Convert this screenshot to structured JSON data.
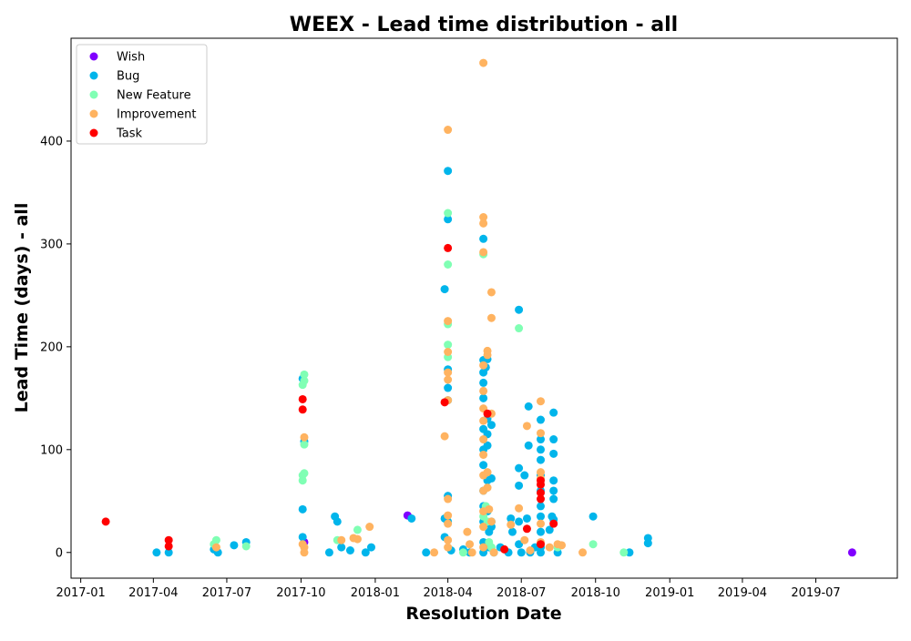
{
  "chart_data": {
    "type": "scatter",
    "title": "WEEX - Lead time distribution - all",
    "xlabel": "Resolution Date",
    "ylabel": "Lead Time (days) - all",
    "x_ticks": [
      "2017-01",
      "2017-04",
      "2017-07",
      "2017-10",
      "2018-01",
      "2018-04",
      "2018-07",
      "2018-10",
      "2019-01",
      "2019-04",
      "2019-07"
    ],
    "x_range": [
      "2016-12-20",
      "2019-10-10"
    ],
    "y_ticks": [
      0,
      100,
      200,
      300,
      400
    ],
    "ylim": [
      -25,
      500
    ],
    "legend_position": "upper-left",
    "grid": false,
    "series": [
      {
        "name": "Wish",
        "color": "#8000ff",
        "points": [
          [
            "2017-10-05",
            10
          ],
          [
            "2018-02-10",
            36
          ],
          [
            "2019-08-15",
            0
          ]
        ]
      },
      {
        "name": "Bug",
        "color": "#00b5eb",
        "points": [
          [
            "2017-04-05",
            0
          ],
          [
            "2017-04-20",
            0
          ],
          [
            "2017-06-15",
            3
          ],
          [
            "2017-06-20",
            0
          ],
          [
            "2017-07-10",
            7
          ],
          [
            "2017-07-25",
            10
          ],
          [
            "2017-10-03",
            169
          ],
          [
            "2017-10-03",
            42
          ],
          [
            "2017-10-03",
            15
          ],
          [
            "2017-10-05",
            108
          ],
          [
            "2017-11-05",
            0
          ],
          [
            "2017-11-12",
            35
          ],
          [
            "2017-11-15",
            30
          ],
          [
            "2017-11-20",
            5
          ],
          [
            "2017-12-01",
            2
          ],
          [
            "2017-12-20",
            0
          ],
          [
            "2017-12-27",
            5
          ],
          [
            "2018-02-15",
            33
          ],
          [
            "2018-03-05",
            0
          ],
          [
            "2018-03-28",
            256
          ],
          [
            "2018-03-28",
            33
          ],
          [
            "2018-03-28",
            15
          ],
          [
            "2018-04-01",
            371
          ],
          [
            "2018-04-01",
            324
          ],
          [
            "2018-04-01",
            178
          ],
          [
            "2018-04-01",
            160
          ],
          [
            "2018-04-01",
            148
          ],
          [
            "2018-04-01",
            55
          ],
          [
            "2018-04-01",
            30
          ],
          [
            "2018-04-05",
            2
          ],
          [
            "2018-04-20",
            3
          ],
          [
            "2018-04-28",
            0
          ],
          [
            "2018-05-15",
            305
          ],
          [
            "2018-05-15",
            187
          ],
          [
            "2018-05-15",
            175
          ],
          [
            "2018-05-15",
            165
          ],
          [
            "2018-05-15",
            150
          ],
          [
            "2018-05-15",
            120
          ],
          [
            "2018-05-15",
            100
          ],
          [
            "2018-05-15",
            85
          ],
          [
            "2018-05-15",
            60
          ],
          [
            "2018-05-15",
            45
          ],
          [
            "2018-05-15",
            30
          ],
          [
            "2018-05-15",
            10
          ],
          [
            "2018-05-15",
            0
          ],
          [
            "2018-05-18",
            180
          ],
          [
            "2018-05-20",
            188
          ],
          [
            "2018-05-20",
            130
          ],
          [
            "2018-05-20",
            115
          ],
          [
            "2018-05-20",
            104
          ],
          [
            "2018-05-20",
            70
          ],
          [
            "2018-05-20",
            40
          ],
          [
            "2018-05-22",
            20
          ],
          [
            "2018-05-22",
            5
          ],
          [
            "2018-05-25",
            124
          ],
          [
            "2018-05-25",
            72
          ],
          [
            "2018-05-25",
            30
          ],
          [
            "2018-05-25",
            25
          ],
          [
            "2018-05-28",
            0
          ],
          [
            "2018-06-05",
            5
          ],
          [
            "2018-06-15",
            0
          ],
          [
            "2018-06-18",
            33
          ],
          [
            "2018-06-20",
            20
          ],
          [
            "2018-06-28",
            236
          ],
          [
            "2018-06-28",
            82
          ],
          [
            "2018-06-28",
            65
          ],
          [
            "2018-06-28",
            30
          ],
          [
            "2018-06-28",
            8
          ],
          [
            "2018-07-01",
            0
          ],
          [
            "2018-07-05",
            75
          ],
          [
            "2018-07-08",
            33
          ],
          [
            "2018-07-10",
            142
          ],
          [
            "2018-07-10",
            104
          ],
          [
            "2018-07-12",
            0
          ],
          [
            "2018-07-18",
            5
          ],
          [
            "2018-07-25",
            129
          ],
          [
            "2018-07-25",
            110
          ],
          [
            "2018-07-25",
            100
          ],
          [
            "2018-07-25",
            90
          ],
          [
            "2018-07-25",
            75
          ],
          [
            "2018-07-25",
            60
          ],
          [
            "2018-07-25",
            45
          ],
          [
            "2018-07-25",
            35
          ],
          [
            "2018-07-25",
            20
          ],
          [
            "2018-07-25",
            5
          ],
          [
            "2018-07-25",
            0
          ],
          [
            "2018-08-05",
            22
          ],
          [
            "2018-08-08",
            35
          ],
          [
            "2018-08-10",
            136
          ],
          [
            "2018-08-10",
            110
          ],
          [
            "2018-08-10",
            96
          ],
          [
            "2018-08-10",
            70
          ],
          [
            "2018-08-10",
            60
          ],
          [
            "2018-08-10",
            52
          ],
          [
            "2018-08-10",
            32
          ],
          [
            "2018-08-15",
            0
          ],
          [
            "2018-09-28",
            35
          ],
          [
            "2018-11-12",
            0
          ],
          [
            "2018-12-05",
            14
          ],
          [
            "2018-12-05",
            9
          ]
        ]
      },
      {
        "name": "New Feature",
        "color": "#80ffb4",
        "points": [
          [
            "2017-06-15",
            8
          ],
          [
            "2017-06-18",
            12
          ],
          [
            "2017-07-25",
            6
          ],
          [
            "2017-10-03",
            163
          ],
          [
            "2017-10-03",
            75
          ],
          [
            "2017-10-03",
            70
          ],
          [
            "2017-10-05",
            173
          ],
          [
            "2017-10-05",
            167
          ],
          [
            "2017-10-05",
            105
          ],
          [
            "2017-10-05",
            77
          ],
          [
            "2017-11-15",
            12
          ],
          [
            "2017-12-10",
            22
          ],
          [
            "2018-04-01",
            330
          ],
          [
            "2018-04-01",
            280
          ],
          [
            "2018-04-01",
            222
          ],
          [
            "2018-04-01",
            202
          ],
          [
            "2018-04-01",
            190
          ],
          [
            "2018-04-20",
            0
          ],
          [
            "2018-05-15",
            290
          ],
          [
            "2018-05-15",
            35
          ],
          [
            "2018-05-18",
            45
          ],
          [
            "2018-05-20",
            30
          ],
          [
            "2018-05-22",
            10
          ],
          [
            "2018-05-25",
            5
          ],
          [
            "2018-06-28",
            218
          ],
          [
            "2018-08-15",
            5
          ],
          [
            "2018-09-28",
            8
          ],
          [
            "2018-11-05",
            0
          ]
        ]
      },
      {
        "name": "Improvement",
        "color": "#ffb360",
        "points": [
          [
            "2017-06-18",
            5
          ],
          [
            "2017-10-03",
            8
          ],
          [
            "2017-10-05",
            112
          ],
          [
            "2017-10-05",
            5
          ],
          [
            "2017-10-05",
            0
          ],
          [
            "2017-11-20",
            12
          ],
          [
            "2017-12-05",
            14
          ],
          [
            "2017-12-10",
            13
          ],
          [
            "2017-12-25",
            25
          ],
          [
            "2018-03-15",
            0
          ],
          [
            "2018-03-28",
            113
          ],
          [
            "2018-04-01",
            411
          ],
          [
            "2018-04-01",
            225
          ],
          [
            "2018-04-01",
            195
          ],
          [
            "2018-04-01",
            175
          ],
          [
            "2018-04-01",
            168
          ],
          [
            "2018-04-01",
            148
          ],
          [
            "2018-04-01",
            52
          ],
          [
            "2018-04-01",
            36
          ],
          [
            "2018-04-01",
            28
          ],
          [
            "2018-04-01",
            12
          ],
          [
            "2018-04-01",
            5
          ],
          [
            "2018-04-25",
            20
          ],
          [
            "2018-04-28",
            8
          ],
          [
            "2018-05-01",
            0
          ],
          [
            "2018-05-15",
            476
          ],
          [
            "2018-05-15",
            326
          ],
          [
            "2018-05-15",
            320
          ],
          [
            "2018-05-15",
            292
          ],
          [
            "2018-05-15",
            182
          ],
          [
            "2018-05-15",
            157
          ],
          [
            "2018-05-15",
            140
          ],
          [
            "2018-05-15",
            128
          ],
          [
            "2018-05-15",
            110
          ],
          [
            "2018-05-15",
            95
          ],
          [
            "2018-05-15",
            75
          ],
          [
            "2018-05-15",
            60
          ],
          [
            "2018-05-15",
            40
          ],
          [
            "2018-05-15",
            25
          ],
          [
            "2018-05-15",
            5
          ],
          [
            "2018-05-20",
            196
          ],
          [
            "2018-05-20",
            192
          ],
          [
            "2018-05-20",
            78
          ],
          [
            "2018-05-20",
            63
          ],
          [
            "2018-05-22",
            42
          ],
          [
            "2018-05-25",
            253
          ],
          [
            "2018-05-25",
            228
          ],
          [
            "2018-05-25",
            135
          ],
          [
            "2018-05-25",
            30
          ],
          [
            "2018-05-28",
            0
          ],
          [
            "2018-06-18",
            27
          ],
          [
            "2018-06-28",
            43
          ],
          [
            "2018-07-05",
            12
          ],
          [
            "2018-07-08",
            123
          ],
          [
            "2018-07-12",
            2
          ],
          [
            "2018-07-25",
            147
          ],
          [
            "2018-07-25",
            116
          ],
          [
            "2018-07-25",
            78
          ],
          [
            "2018-07-25",
            72
          ],
          [
            "2018-07-25",
            28
          ],
          [
            "2018-07-25",
            10
          ],
          [
            "2018-08-05",
            5
          ],
          [
            "2018-08-15",
            8
          ],
          [
            "2018-08-20",
            7
          ],
          [
            "2018-09-15",
            0
          ]
        ]
      },
      {
        "name": "Task",
        "color": "#ff0000",
        "points": [
          [
            "2017-02-01",
            30
          ],
          [
            "2017-04-20",
            12
          ],
          [
            "2017-04-20",
            6
          ],
          [
            "2017-10-03",
            149
          ],
          [
            "2017-10-03",
            139
          ],
          [
            "2018-03-28",
            146
          ],
          [
            "2018-04-01",
            296
          ],
          [
            "2018-05-20",
            135
          ],
          [
            "2018-06-10",
            3
          ],
          [
            "2018-07-08",
            23
          ],
          [
            "2018-07-25",
            70
          ],
          [
            "2018-07-25",
            66
          ],
          [
            "2018-07-25",
            58
          ],
          [
            "2018-07-25",
            52
          ],
          [
            "2018-07-25",
            8
          ],
          [
            "2018-08-10",
            28
          ]
        ]
      }
    ]
  }
}
